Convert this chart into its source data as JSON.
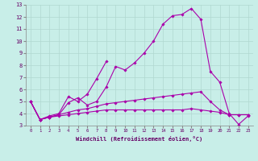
{
  "title": "",
  "xlabel": "Windchill (Refroidissement éolien,°C)",
  "ylabel": "",
  "background_color": "#c8eee8",
  "grid_color": "#b0d8d0",
  "line_color": "#aa00aa",
  "xlim": [
    -0.5,
    23.5
  ],
  "ylim": [
    3.0,
    13.0
  ],
  "yticks": [
    3,
    4,
    5,
    6,
    7,
    8,
    9,
    10,
    11,
    12,
    13
  ],
  "xticks": [
    0,
    1,
    2,
    3,
    4,
    5,
    6,
    7,
    8,
    9,
    10,
    11,
    12,
    13,
    14,
    15,
    16,
    17,
    18,
    19,
    20,
    21,
    22,
    23
  ],
  "series": [
    {
      "x": [
        0,
        1,
        2,
        3,
        4,
        5,
        6,
        7,
        8,
        9,
        10,
        11,
        12,
        13,
        14,
        15,
        16,
        17,
        18,
        19,
        20,
        21,
        22,
        23
      ],
      "y": [
        5.0,
        3.5,
        3.7,
        3.9,
        4.9,
        5.3,
        4.7,
        5.0,
        6.2,
        7.9,
        7.6,
        8.2,
        9.0,
        10.0,
        11.4,
        12.1,
        12.2,
        12.7,
        11.8,
        7.5,
        6.6,
        4.0,
        3.1,
        3.8
      ]
    },
    {
      "x": [
        0,
        1,
        2,
        3,
        4,
        5,
        6,
        7,
        8
      ],
      "y": [
        5.0,
        3.5,
        3.8,
        4.0,
        5.4,
        5.0,
        5.6,
        6.9,
        8.3
      ]
    },
    {
      "x": [
        0,
        1,
        2,
        3,
        4,
        5,
        6,
        7,
        8,
        9,
        10,
        11,
        12,
        13,
        14,
        15,
        16,
        17,
        18,
        19,
        20,
        21,
        22,
        23
      ],
      "y": [
        5.0,
        3.5,
        3.7,
        3.9,
        4.1,
        4.3,
        4.4,
        4.6,
        4.8,
        4.9,
        5.0,
        5.1,
        5.2,
        5.3,
        5.4,
        5.5,
        5.6,
        5.7,
        5.8,
        5.0,
        4.3,
        3.9,
        3.9,
        3.9
      ]
    },
    {
      "x": [
        0,
        1,
        2,
        3,
        4,
        5,
        6,
        7,
        8,
        9,
        10,
        11,
        12,
        13,
        14,
        15,
        16,
        17,
        18,
        19,
        20,
        21,
        22,
        23
      ],
      "y": [
        5.0,
        3.5,
        3.7,
        3.8,
        3.9,
        4.0,
        4.1,
        4.2,
        4.3,
        4.3,
        4.3,
        4.3,
        4.3,
        4.3,
        4.3,
        4.3,
        4.3,
        4.4,
        4.3,
        4.2,
        4.1,
        3.9,
        3.9,
        3.9
      ]
    }
  ]
}
